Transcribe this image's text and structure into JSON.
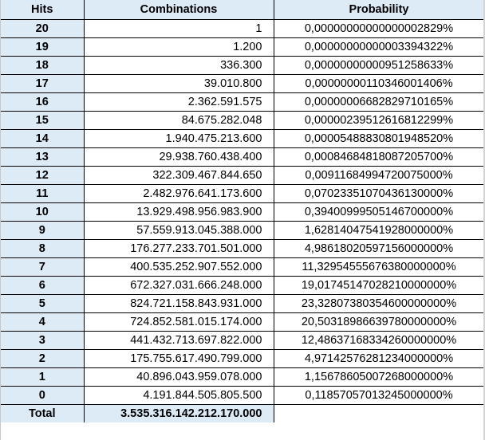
{
  "table": {
    "headers": {
      "hits": "Hits",
      "combinations": "Combinations",
      "probability": "Probability"
    },
    "rows": [
      {
        "hits": "20",
        "combinations": "1",
        "probability": "0,00000000000000002829%"
      },
      {
        "hits": "19",
        "combinations": "1.200",
        "probability": "0,00000000000003394322%"
      },
      {
        "hits": "18",
        "combinations": "336.300",
        "probability": "0,00000000000951258633%"
      },
      {
        "hits": "17",
        "combinations": "39.010.800",
        "probability": "0,00000000110346001406%"
      },
      {
        "hits": "16",
        "combinations": "2.362.591.575",
        "probability": "0,00000006682829710165%"
      },
      {
        "hits": "15",
        "combinations": "84.675.282.048",
        "probability": "0,00000239512616812299%"
      },
      {
        "hits": "14",
        "combinations": "1.940.475.213.600",
        "probability": "0,00005488830801948520%"
      },
      {
        "hits": "13",
        "combinations": "29.938.760.438.400",
        "probability": "0,00084684818087205700%"
      },
      {
        "hits": "12",
        "combinations": "322.309.467.844.650",
        "probability": "0,00911684994720075000%"
      },
      {
        "hits": "11",
        "combinations": "2.482.976.641.173.600",
        "probability": "0,07023351070436130000%"
      },
      {
        "hits": "10",
        "combinations": "13.929.498.956.983.900",
        "probability": "0,39400999505146700000%"
      },
      {
        "hits": "9",
        "combinations": "57.559.913.045.388.000",
        "probability": "1,62814047541928000000%"
      },
      {
        "hits": "8",
        "combinations": "176.277.233.701.501.000",
        "probability": "4,98618020597156000000%"
      },
      {
        "hits": "7",
        "combinations": "400.535.252.907.552.000",
        "probability": "11,32954555676380000000%"
      },
      {
        "hits": "6",
        "combinations": "672.327.031.666.248.000",
        "probability": "19,01745147028210000000%"
      },
      {
        "hits": "5",
        "combinations": "824.721.158.843.931.000",
        "probability": "23,32807380354600000000%"
      },
      {
        "hits": "4",
        "combinations": "724.852.581.015.174.000",
        "probability": "20,50318986639780000000%"
      },
      {
        "hits": "3",
        "combinations": "441.432.713.697.822.000",
        "probability": "12,48637168334260000000%"
      },
      {
        "hits": "2",
        "combinations": "175.755.617.490.799.000",
        "probability": "4,97142576281234000000%"
      },
      {
        "hits": "1",
        "combinations": "40.896.043.959.078.000",
        "probability": "1,15678605007268000000%"
      },
      {
        "hits": "0",
        "combinations": "4.191.844.505.805.500",
        "probability": "0,11857057013245000000%"
      }
    ],
    "total": {
      "label": "Total",
      "combinations": "3.535.316.142.212.170.000"
    }
  },
  "colors": {
    "header_bg": "#ddebf7",
    "border": "#000000",
    "cell_bg": "#ffffff"
  }
}
